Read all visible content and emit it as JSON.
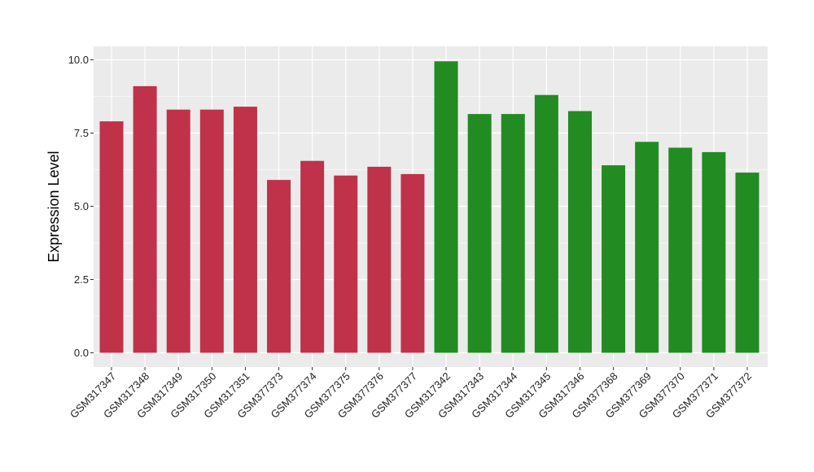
{
  "chart_data": {
    "type": "bar",
    "title": "",
    "xlabel": "",
    "ylabel": "Expression Level",
    "ylim": [
      0,
      10.5
    ],
    "yticks": [
      0.0,
      2.5,
      5.0,
      7.5,
      10.0
    ],
    "ytick_labels": [
      "0.0",
      "2.5",
      "5.0",
      "7.5",
      "10.0"
    ],
    "grid": true,
    "background": "#ebebeb",
    "grid_color": "#ffffff",
    "categories": [
      "GSM317347",
      "GSM317348",
      "GSM317349",
      "GSM317350",
      "GSM317351",
      "GSM377373",
      "GSM377374",
      "GSM377375",
      "GSM377376",
      "GSM377377",
      "GSM317342",
      "GSM317343",
      "GSM317344",
      "GSM317345",
      "GSM317346",
      "GSM377368",
      "GSM377369",
      "GSM377370",
      "GSM377371",
      "GSM377372"
    ],
    "values": [
      7.9,
      9.1,
      8.3,
      8.3,
      8.4,
      5.9,
      6.55,
      6.05,
      6.35,
      6.1,
      9.95,
      8.15,
      8.15,
      8.8,
      8.25,
      6.4,
      7.2,
      7.0,
      6.85,
      6.15
    ],
    "bar_colors": [
      "#c0314a",
      "#c0314a",
      "#c0314a",
      "#c0314a",
      "#c0314a",
      "#c0314a",
      "#c0314a",
      "#c0314a",
      "#c0314a",
      "#c0314a",
      "#228b22",
      "#228b22",
      "#228b22",
      "#228b22",
      "#228b22",
      "#228b22",
      "#228b22",
      "#228b22",
      "#228b22",
      "#228b22"
    ]
  }
}
